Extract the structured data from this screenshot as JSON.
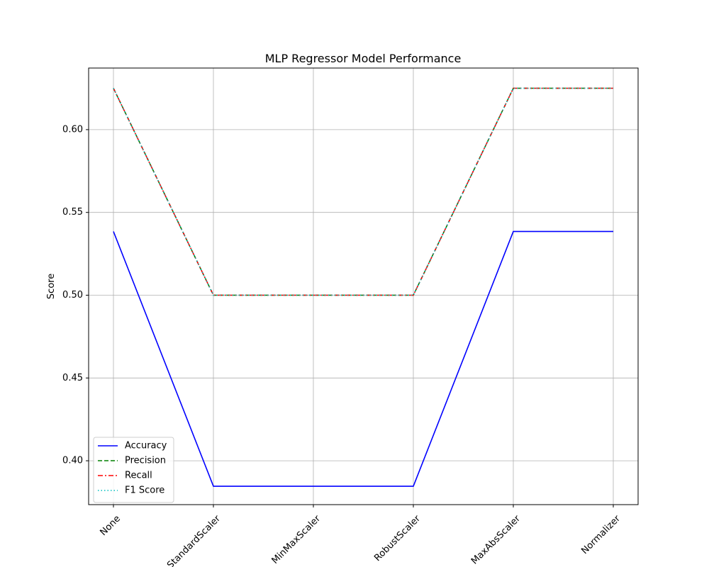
{
  "chart_data": {
    "type": "line",
    "title": "MLP Regressor Model Performance",
    "xlabel": "",
    "ylabel": "Score",
    "categories": [
      "None",
      "StandardScaler",
      "MinMaxScaler",
      "RobustScaler",
      "MaxAbsScaler",
      "Normalizer"
    ],
    "ylim": [
      0.3735,
      0.6372
    ],
    "yticks": [
      0.4,
      0.45,
      0.5,
      0.55,
      0.6
    ],
    "ytick_labels": [
      "0.40",
      "0.45",
      "0.50",
      "0.55",
      "0.60"
    ],
    "grid": true,
    "legend_position": "lower-left",
    "series": [
      {
        "name": "Accuracy",
        "color": "#0000ff",
        "style": "solid",
        "values": [
          0.5385,
          0.3846,
          0.3846,
          0.3846,
          0.5385,
          0.5385
        ]
      },
      {
        "name": "Precision",
        "color": "#008000",
        "style": "dashed",
        "values": [
          0.625,
          0.5,
          0.5,
          0.5,
          0.625,
          0.625
        ]
      },
      {
        "name": "Recall",
        "color": "#ff0000",
        "style": "dashdot",
        "values": [
          0.625,
          0.5,
          0.5,
          0.5,
          0.625,
          0.625
        ]
      },
      {
        "name": "F1 Score",
        "color": "#00bfbf",
        "style": "dotted",
        "values": [
          0.625,
          0.5,
          0.5,
          0.5,
          0.625,
          0.625
        ]
      }
    ]
  }
}
